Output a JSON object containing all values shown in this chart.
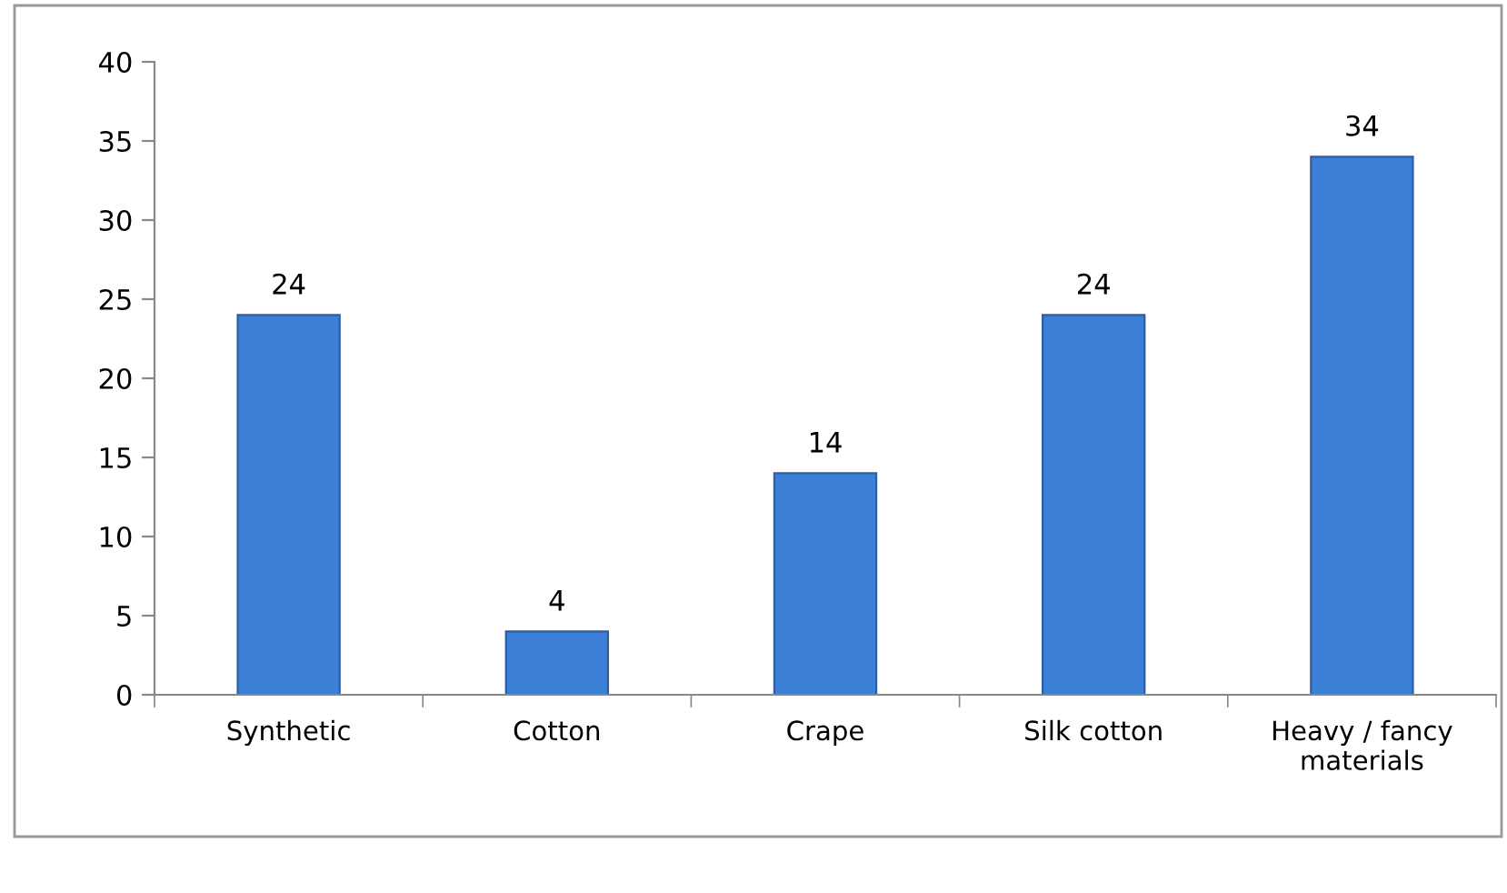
{
  "chart_data": {
    "type": "bar",
    "categories": [
      "Synthetic",
      "Cotton",
      "Crape",
      "Silk cotton",
      "Heavy / fancy materials"
    ],
    "values": [
      24,
      4,
      14,
      24,
      34
    ],
    "color": "#3b7fd6",
    "ylim": [
      0,
      40
    ],
    "yticks": [
      0,
      5,
      10,
      15,
      20,
      25,
      30,
      35,
      40
    ],
    "grid": false,
    "data_labels": true
  }
}
